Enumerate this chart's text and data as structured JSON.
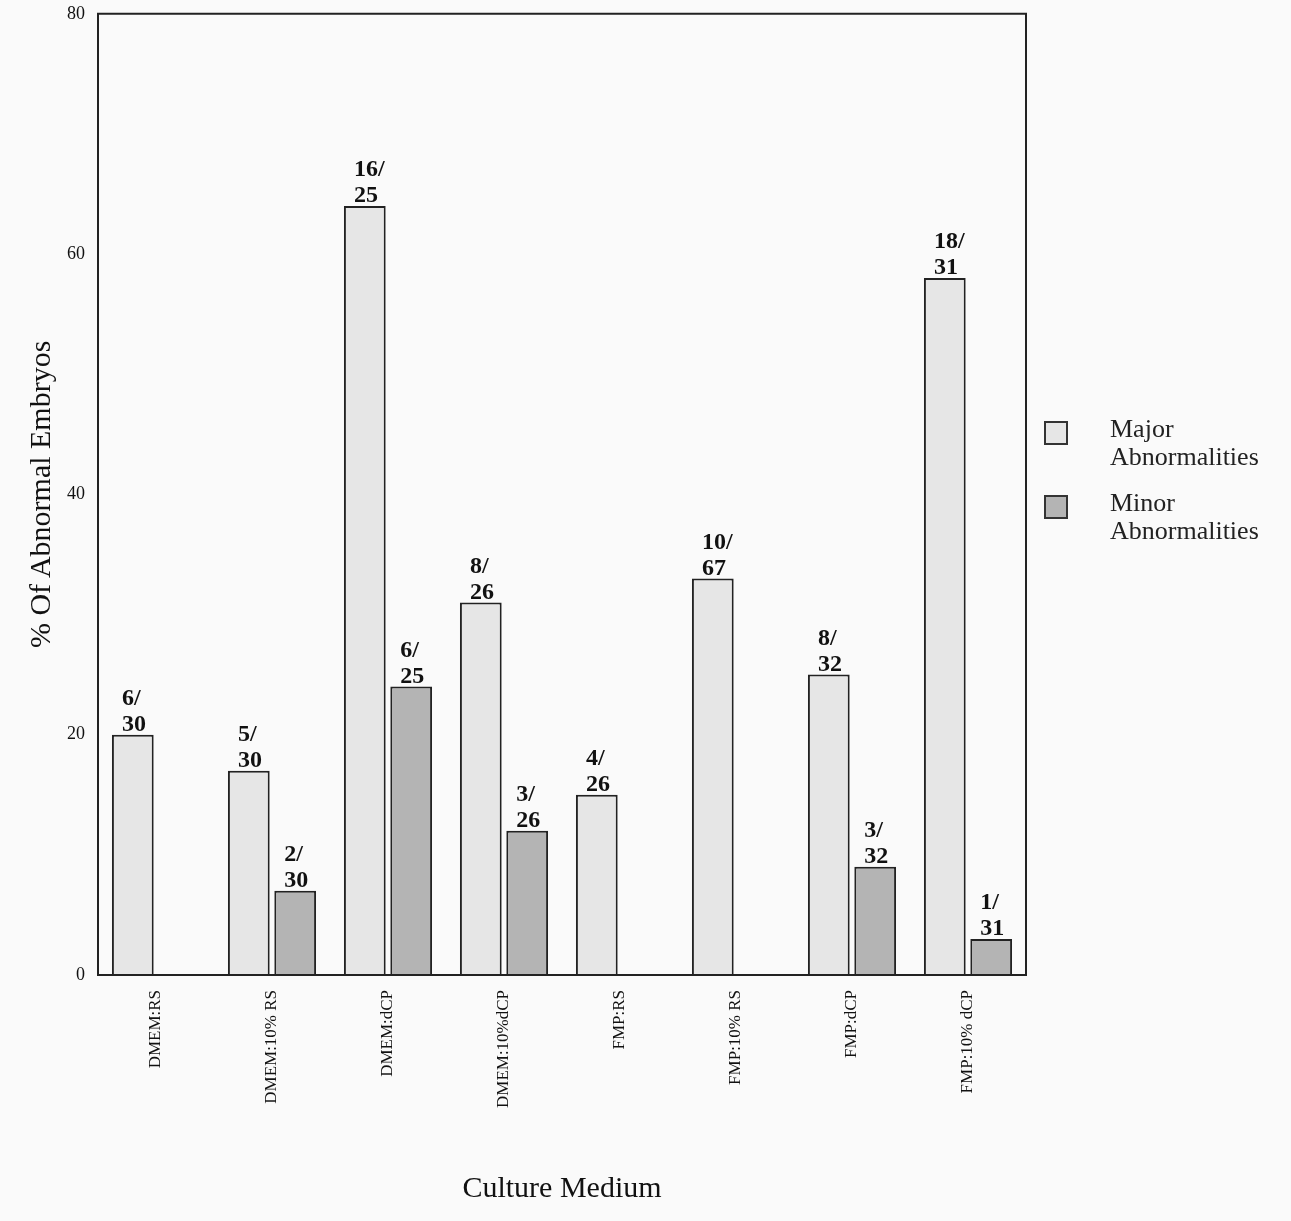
{
  "chart_data": {
    "type": "bar",
    "xlabel": "Culture Medium",
    "ylabel": "% Of Abnormal Embryos",
    "categories": [
      "DMEM:RS",
      "DMEM:10% RS",
      "DMEM:dCP",
      "DMEM:10%dCP",
      "FMP:RS",
      "FMP:10% RS",
      "FMP:dCP",
      "FMP:10% dCP"
    ],
    "series": [
      {
        "name": "Major Abnormalities",
        "color": "#e6e6e6",
        "values": [
          20,
          17,
          64,
          31,
          15,
          33,
          25,
          58
        ],
        "value_labels": [
          "6/30",
          "5/30",
          "16/25",
          "8/26",
          "4/26",
          "10/67",
          "8/32",
          "18/31"
        ]
      },
      {
        "name": "Minor Abnormalities",
        "color": "#b4b4b4",
        "values": [
          null,
          7,
          24,
          12,
          null,
          null,
          9,
          3
        ],
        "value_labels": [
          null,
          "2/30",
          "6/25",
          "3/26",
          null,
          null,
          "3/32",
          "1/31"
        ]
      }
    ],
    "ylim": [
      0,
      80
    ],
    "yticks": [
      0,
      20,
      40,
      60,
      80
    ],
    "grid": false,
    "legend": "right"
  }
}
